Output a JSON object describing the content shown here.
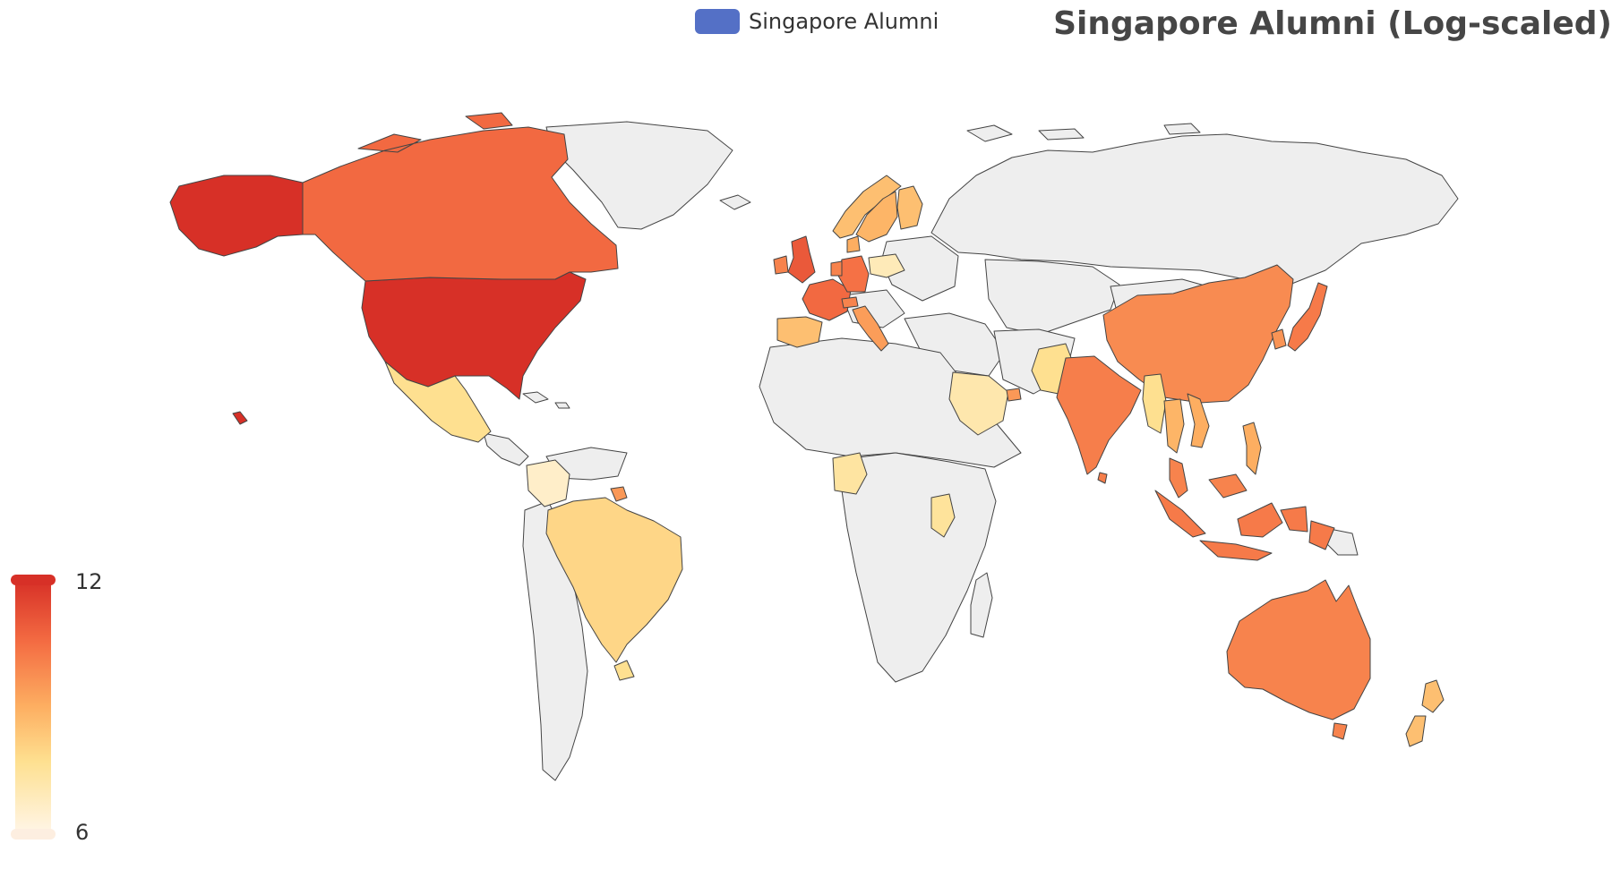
{
  "title": "Singapore Alumni (Log-scaled)",
  "legend": {
    "label": "Singapore Alumni",
    "color": "#5470c6"
  },
  "visual_map": {
    "max_label": "12",
    "min_label": "6",
    "min": 6,
    "max": 12,
    "colors": [
      "#fff5e6",
      "#fee090",
      "#fdae61",
      "#f46d43",
      "#d73027"
    ]
  },
  "no_data_color": "#eeeeee",
  "map_data": {
    "type": "choropleth",
    "scale": "log",
    "regions": [
      {
        "name": "United States",
        "value": 12
      },
      {
        "name": "Canada",
        "value": 10.6
      },
      {
        "name": "Mexico",
        "value": 7.5
      },
      {
        "name": "Brazil",
        "value": 7.8
      },
      {
        "name": "Colombia",
        "value": 6.5
      },
      {
        "name": "Uruguay",
        "value": 7.5
      },
      {
        "name": "Suriname",
        "value": 9.5
      },
      {
        "name": "United Kingdom",
        "value": 11
      },
      {
        "name": "Ireland",
        "value": 10
      },
      {
        "name": "France",
        "value": 10.6
      },
      {
        "name": "Germany",
        "value": 10.4
      },
      {
        "name": "Switzerland",
        "value": 10
      },
      {
        "name": "Italy",
        "value": 9.4
      },
      {
        "name": "Spain",
        "value": 8.5
      },
      {
        "name": "Netherlands",
        "value": 10
      },
      {
        "name": "Sweden",
        "value": 8.8
      },
      {
        "name": "Norway",
        "value": 8.5
      },
      {
        "name": "Finland",
        "value": 8.5
      },
      {
        "name": "Denmark",
        "value": 9
      },
      {
        "name": "Poland",
        "value": 6.8
      },
      {
        "name": "Saudi Arabia",
        "value": 7
      },
      {
        "name": "United Arab Emirates",
        "value": 9.5
      },
      {
        "name": "Pakistan",
        "value": 7.5
      },
      {
        "name": "India",
        "value": 10.1
      },
      {
        "name": "China",
        "value": 9.8
      },
      {
        "name": "South Korea",
        "value": 9.6
      },
      {
        "name": "Japan",
        "value": 10.2
      },
      {
        "name": "Myanmar",
        "value": 7.5
      },
      {
        "name": "Thailand",
        "value": 8.8
      },
      {
        "name": "Vietnam",
        "value": 9
      },
      {
        "name": "Philippines",
        "value": 9
      },
      {
        "name": "Malaysia",
        "value": 10
      },
      {
        "name": "Indonesia",
        "value": 10.2
      },
      {
        "name": "Nigeria",
        "value": 7.2
      },
      {
        "name": "Kenya",
        "value": 7.3
      },
      {
        "name": "Australia",
        "value": 10
      },
      {
        "name": "New Zealand",
        "value": 8.5
      }
    ]
  }
}
